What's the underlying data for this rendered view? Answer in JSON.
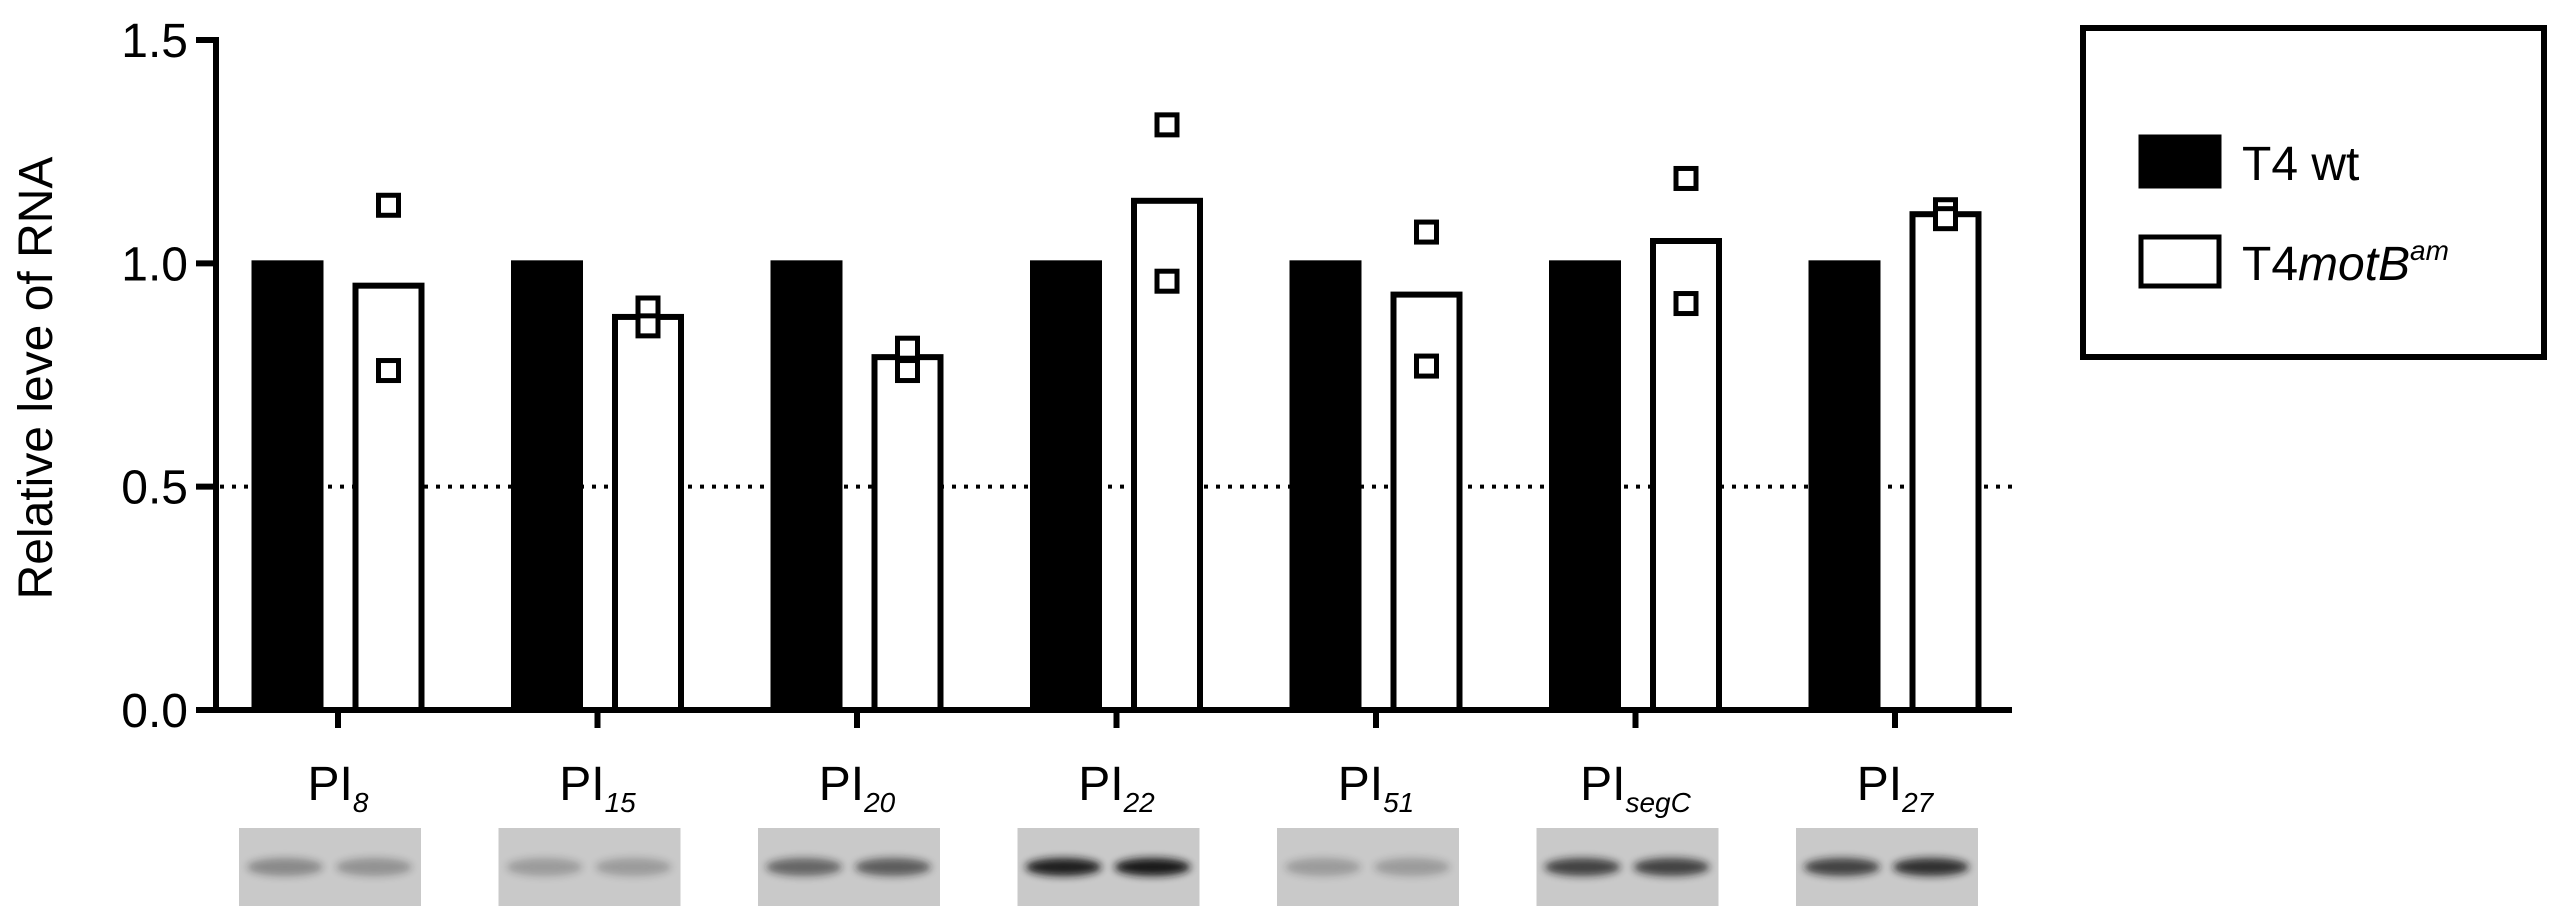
{
  "chart_data": {
    "type": "bar",
    "title": "",
    "xlabel": "",
    "ylabel": "Relative leve of RNA",
    "ylim": [
      0,
      1.5
    ],
    "yticks": [
      "0.0",
      "0.5",
      "1.0",
      "1.5"
    ],
    "reference_line": {
      "value": 0.5,
      "style": "dotted"
    },
    "categories": [
      {
        "base": "PI",
        "sub": "8"
      },
      {
        "base": "PI",
        "sub": "15"
      },
      {
        "base": "PI",
        "sub": "20"
      },
      {
        "base": "PI",
        "sub": "22"
      },
      {
        "base": "PI",
        "sub": "51"
      },
      {
        "base": "PI",
        "sub": "segC"
      },
      {
        "base": "PI",
        "sub": "27"
      }
    ],
    "series": [
      {
        "name": "T4 wt",
        "fill": "#000000",
        "values": [
          1.0,
          1.0,
          1.0,
          1.0,
          1.0,
          1.0,
          1.0
        ]
      },
      {
        "name": "T4motBam",
        "legend_parts": {
          "prefix": "T4",
          "italic": "motB",
          "sup": "am"
        },
        "fill": "#ffffff",
        "values": [
          0.95,
          0.88,
          0.79,
          1.14,
          0.93,
          1.05,
          1.11
        ],
        "replicates": [
          [
            1.13,
            0.76
          ],
          [
            0.9,
            0.86
          ],
          [
            0.81,
            0.76
          ],
          [
            1.31,
            0.96
          ],
          [
            1.07,
            0.77
          ],
          [
            1.19,
            0.91
          ],
          [
            1.12,
            1.1
          ]
        ]
      }
    ],
    "legend": {
      "position": "right"
    },
    "blots": [
      {
        "intensity": [
          0.35,
          0.3
        ]
      },
      {
        "intensity": [
          0.25,
          0.25
        ]
      },
      {
        "intensity": [
          0.55,
          0.6
        ]
      },
      {
        "intensity": [
          0.95,
          0.98
        ]
      },
      {
        "intensity": [
          0.25,
          0.25
        ]
      },
      {
        "intensity": [
          0.75,
          0.75
        ]
      },
      {
        "intensity": [
          0.75,
          0.85
        ]
      }
    ]
  },
  "colors": {
    "axis": "#000000",
    "blot_background": "#c9c9c9",
    "band_dark": "#141414"
  }
}
